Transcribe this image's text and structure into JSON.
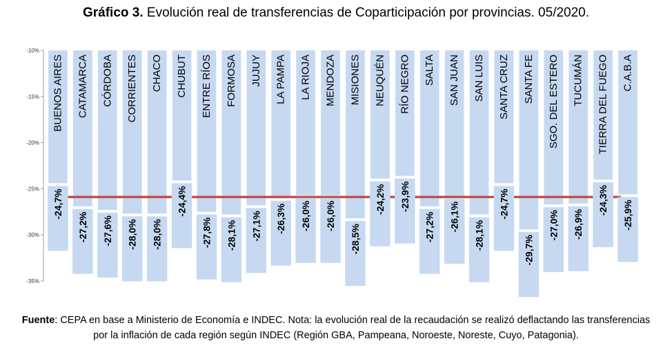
{
  "title": {
    "bold": "Gráfico 3.",
    "text": "Evolución real de transferencias de Coparticipación por provincias. 05/2020."
  },
  "note": {
    "label": "Fuente",
    "text": ": CEPA en base a Ministerio de Economía e INDEC. Nota: la evolución real de la recaudación se realizó deflactando las transferencias por la inflación de cada región según INDEC (Región GBA, Pampeana, Noroeste, Noreste, Cuyo, Patagonia)."
  },
  "chart_data": {
    "type": "bar",
    "categories": [
      "BUENOS AIRES",
      "CATAMARCA",
      "CÓRDOBA",
      "CORRIENTES",
      "CHACO",
      "CHUBUT",
      "ENTRE RÍOS",
      "FORMOSA",
      "JUJUY",
      "LA PAMPA",
      "LA RIOJA",
      "MENDOZA",
      "MISIONES",
      "NEUQUÉN",
      "RÍO NEGRO",
      "SALTA",
      "SAN JUAN",
      "SAN LUIS",
      "SANTA CRUZ",
      "SANTA FE",
      "SGO. DEL ESTERO",
      "TUCUMÁN",
      "TIERRA DEL FUEGO",
      "C.A.B.A"
    ],
    "values": [
      -24.7,
      -27.2,
      -27.6,
      -28.0,
      -28.0,
      -24.4,
      -27.8,
      -28.1,
      -27.1,
      -26.3,
      -26.0,
      -26.0,
      -28.5,
      -24.2,
      -23.9,
      -27.2,
      -26.1,
      -28.1,
      -24.7,
      -29.7,
      -27.0,
      -26.9,
      -24.3,
      -25.9
    ],
    "data_labels": [
      "-24,7%",
      "-27,2%",
      "-27,6%",
      "-28,0%",
      "-28,0%",
      "-24,4%",
      "-27,8%",
      "-28,1%",
      "-27,1%",
      "-26,3%",
      "-26,0%",
      "-26,0%",
      "-28,5%",
      "-24,2%",
      "-23,9%",
      "-27,2%",
      "-26,1%",
      "-28,1%",
      "-24,7%",
      "-29,7%",
      "-27,0%",
      "-26,9%",
      "-24,3%",
      "-25,9%"
    ],
    "reference_line": {
      "value": -25.9
    },
    "ylim": [
      -35,
      -10
    ],
    "yticks": [
      -10,
      -15,
      -20,
      -25,
      -30,
      -35
    ],
    "ytick_labels": [
      "-10%",
      "-15%",
      "-20%",
      "-25%",
      "-30%",
      "-35%"
    ],
    "xlabel": "",
    "ylabel": "",
    "grid": false,
    "colors": {
      "bar": "#c6d9f1",
      "label_box": "#c6d9f1",
      "reference_line": "#c0504d"
    }
  }
}
